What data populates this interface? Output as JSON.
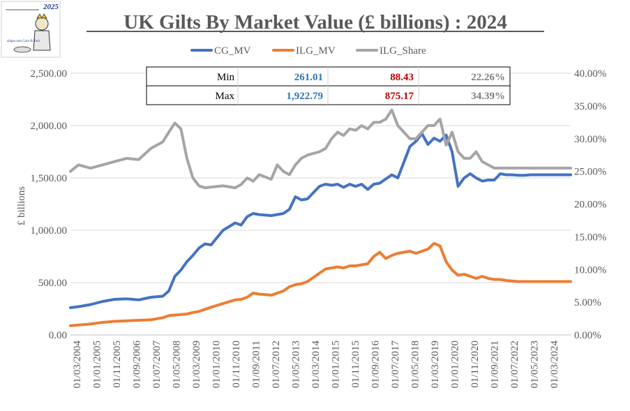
{
  "logo": {
    "year": "2025",
    "caption": "allapt.com Coin & Text"
  },
  "chart_data": {
    "type": "line",
    "title": "UK Gilts By Market Value (£ billions) : 2024",
    "ylabel": "£ billions",
    "ylim": [
      0,
      2500
    ],
    "y2lim": [
      0,
      0.4
    ],
    "yticks": [
      "0.00",
      "500.00",
      "1,000.00",
      "1,500.00",
      "2,000.00",
      "2,500.00"
    ],
    "y2ticks": [
      "0.00%",
      "5.00%",
      "10.00%",
      "15.00%",
      "20.00%",
      "25.00%",
      "30.00%",
      "35.00%",
      "40.00%"
    ],
    "xticks": [
      "01/03/2004",
      "01/01/2005",
      "01/11/2005",
      "01/09/2006",
      "01/07/2007",
      "01/05/2008",
      "01/03/2009",
      "01/01/2010",
      "01/11/2010",
      "01/09/2011",
      "01/07/2012",
      "01/05/2013",
      "01/03/2014",
      "01/01/2015",
      "01/11/2015",
      "01/09/2016",
      "01/07/2017",
      "01/05/2018",
      "01/03/2019",
      "01/01/2020",
      "01/11/2020",
      "01/09/2021",
      "01/07/2022",
      "01/05/2023",
      "01/03/2024"
    ],
    "x": [
      2004.17,
      2004.5,
      2005.0,
      2005.5,
      2006.0,
      2006.5,
      2007.0,
      2007.5,
      2008.0,
      2008.25,
      2008.5,
      2008.75,
      2009.0,
      2009.25,
      2009.5,
      2009.75,
      2010.0,
      2010.5,
      2011.0,
      2011.25,
      2011.5,
      2011.75,
      2012.0,
      2012.5,
      2012.75,
      2013.0,
      2013.25,
      2013.5,
      2013.75,
      2014.0,
      2014.5,
      2014.75,
      2015.0,
      2015.25,
      2015.5,
      2015.75,
      2016.0,
      2016.25,
      2016.5,
      2016.75,
      2017.0,
      2017.25,
      2017.5,
      2017.75,
      2018.0,
      2018.25,
      2018.5,
      2018.75,
      2019.0,
      2019.25,
      2019.5,
      2019.75,
      2020.0,
      2020.25,
      2020.5,
      2020.75,
      2021.0,
      2021.25,
      2021.5,
      2021.75,
      2022.0,
      2022.25,
      2022.5,
      2022.75,
      2023.0,
      2023.25,
      2023.5,
      2023.75,
      2024.0,
      2024.25,
      2024.5,
      2024.75,
      2024.92
    ],
    "series": [
      {
        "name": "CG_MV",
        "color": "#4472C4",
        "axis": "left",
        "values": [
          261,
          270,
          290,
          320,
          340,
          345,
          335,
          360,
          370,
          420,
          560,
          620,
          700,
          760,
          830,
          870,
          860,
          1000,
          1070,
          1050,
          1130,
          1160,
          1150,
          1140,
          1150,
          1160,
          1200,
          1320,
          1290,
          1300,
          1420,
          1440,
          1430,
          1440,
          1410,
          1440,
          1420,
          1440,
          1390,
          1440,
          1450,
          1490,
          1530,
          1500,
          1650,
          1800,
          1850,
          1923,
          1820,
          1880,
          1850,
          1910,
          1750,
          1420,
          1500,
          1540,
          1500,
          1470,
          1480,
          1480,
          1540,
          1530,
          1530,
          1525,
          1525,
          1530,
          1530,
          1530,
          1530,
          1530,
          1530,
          1530,
          1530
        ]
      },
      {
        "name": "ILG_MV",
        "color": "#ED7D31",
        "axis": "left",
        "values": [
          88,
          95,
          105,
          120,
          130,
          135,
          140,
          145,
          165,
          185,
          190,
          195,
          200,
          215,
          225,
          245,
          265,
          300,
          335,
          340,
          360,
          400,
          390,
          380,
          400,
          420,
          460,
          480,
          490,
          510,
          590,
          630,
          640,
          650,
          640,
          660,
          660,
          670,
          680,
          750,
          790,
          730,
          760,
          780,
          790,
          800,
          780,
          800,
          820,
          875,
          850,
          700,
          620,
          570,
          580,
          560,
          540,
          560,
          540,
          530,
          530,
          520,
          515,
          510,
          510,
          510,
          510,
          510,
          510,
          510,
          510,
          510,
          510
        ]
      },
      {
        "name": "ILG_Share",
        "color": "#A5A5A5",
        "axis": "right",
        "values": [
          0.25,
          0.26,
          0.255,
          0.26,
          0.265,
          0.27,
          0.268,
          0.285,
          0.295,
          0.31,
          0.3239,
          0.315,
          0.27,
          0.24,
          0.228,
          0.225,
          0.226,
          0.228,
          0.225,
          0.23,
          0.24,
          0.235,
          0.245,
          0.238,
          0.26,
          0.25,
          0.245,
          0.26,
          0.27,
          0.275,
          0.28,
          0.285,
          0.3,
          0.31,
          0.305,
          0.315,
          0.313,
          0.32,
          0.315,
          0.325,
          0.325,
          0.33,
          0.3439,
          0.32,
          0.31,
          0.3,
          0.3,
          0.31,
          0.32,
          0.32,
          0.33,
          0.29,
          0.31,
          0.28,
          0.27,
          0.27,
          0.28,
          0.265,
          0.26,
          0.255,
          0.255,
          0.255,
          0.255,
          0.255,
          0.255,
          0.255,
          0.255,
          0.255,
          0.255,
          0.255,
          0.255,
          0.255,
          0.255
        ]
      }
    ],
    "summary_table": {
      "rows": [
        {
          "label": "Min",
          "cg": "261.01",
          "ilg": "88.43",
          "share": "22.26%"
        },
        {
          "label": "Max",
          "cg": "1,922.79",
          "ilg": "875.17",
          "share": "34.39%"
        }
      ],
      "colors": {
        "cg": "#2E75B6",
        "ilg": "#C00000",
        "share": "#7F7F7F"
      }
    },
    "legend": [
      "CG_MV",
      "ILG_MV",
      "ILG_Share"
    ]
  }
}
